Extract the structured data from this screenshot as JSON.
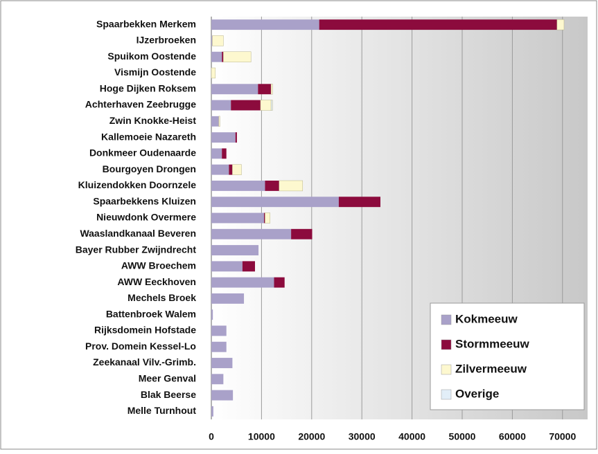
{
  "chart_data": {
    "type": "stacked_barh",
    "categories": [
      "Spaarbekken Merkem",
      "IJzerbroeken",
      "Spuikom Oostende",
      "Vismijn Oostende",
      "Hoge Dijken Roksem",
      "Achterhaven Zeebrugge",
      "Zwin Knokke-Heist",
      "Kallemoeie Nazareth",
      "Donkmeer Oudenaarde",
      "Bourgoyen Drongen",
      "Kluizendokken Doornzele",
      "Spaarbekkens Kluizen",
      "Nieuwdonk Overmere",
      "Waaslandkanaal Beveren",
      "Bayer Rubber Zwijndrecht",
      "AWW Broechem",
      "AWW Eeckhoven",
      "Mechels Broek",
      "Battenbroek Walem",
      "Rijksdomein Hofstade",
      "Prov. Domein Kessel-Lo",
      "Zeekanaal Vilv.-Grimb.",
      "Meer Genval",
      "Blak Beerse",
      "Melle Turnhout"
    ],
    "series": [
      {
        "name": "Kokmeeuw",
        "color": "#a9a1c9",
        "values": [
          21500,
          200,
          2100,
          0,
          9300,
          3900,
          1500,
          4800,
          2100,
          3500,
          10700,
          25400,
          10500,
          15900,
          9400,
          6200,
          12500,
          6500,
          300,
          3000,
          3000,
          4200,
          2400,
          4300,
          400
        ]
      },
      {
        "name": "Stormmeeuw",
        "color": "#8c0b3d",
        "values": [
          47400,
          0,
          300,
          0,
          2600,
          5900,
          0,
          300,
          900,
          700,
          2800,
          8300,
          200,
          4200,
          0,
          2500,
          2100,
          0,
          0,
          0,
          0,
          0,
          0,
          0,
          0
        ]
      },
      {
        "name": "Zilvermeeuw",
        "color": "#fdf8cf",
        "values": [
          1400,
          2200,
          5500,
          800,
          300,
          2100,
          200,
          0,
          0,
          1800,
          4700,
          0,
          1000,
          0,
          0,
          0,
          0,
          0,
          0,
          0,
          0,
          0,
          0,
          0,
          0
        ]
      },
      {
        "name": "Overige",
        "color": "#e2eef8",
        "values": [
          0,
          0,
          0,
          0,
          0,
          300,
          0,
          0,
          0,
          0,
          0,
          0,
          0,
          0,
          0,
          0,
          0,
          0,
          0,
          0,
          0,
          0,
          0,
          0,
          0
        ]
      }
    ],
    "xlim": [
      0,
      75000
    ],
    "xticks": [
      0,
      10000,
      20000,
      30000,
      40000,
      50000,
      60000,
      70000
    ],
    "grid": true,
    "legend": "lower right"
  }
}
